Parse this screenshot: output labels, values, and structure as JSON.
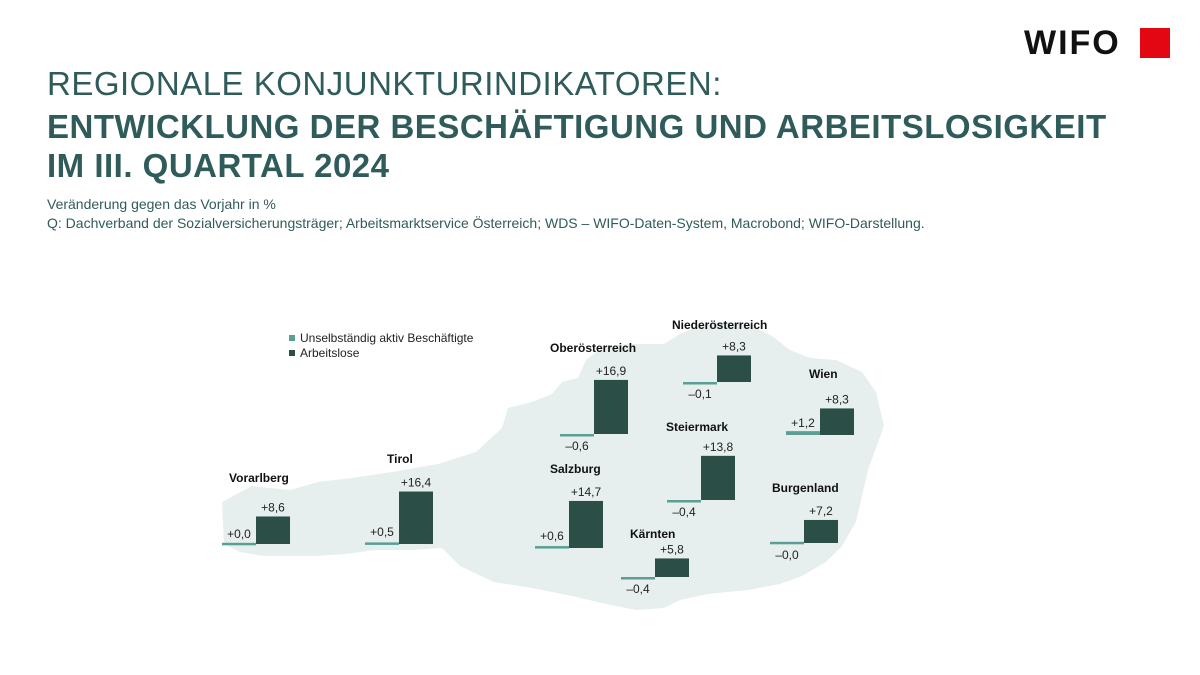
{
  "logo": {
    "text": "WIFO",
    "color": "#e30613"
  },
  "title": {
    "line1": "REGIONALE KONJUNKTURINDIKATOREN:",
    "line2": "ENTWICKLUNG DER BESCHÄFTIGUNG UND ARBEITSLOSIGKEIT",
    "line3": "IM III. QUARTAL 2024"
  },
  "subtitle": "Veränderung gegen das Vorjahr in %",
  "source": "Q: Dachverband der Sozialversicherungsträger; Arbeitsmarktservice Österreich; WDS – WIFO-Daten-System, Macrobond; WIFO-Darstellung.",
  "colors": {
    "employment": "#5a9e94",
    "unemployment": "#2b4f47",
    "map": "#e6efed",
    "text": "#2f5c5a"
  },
  "chart_data": {
    "type": "bar",
    "unit": "%",
    "series": [
      {
        "name": "Unselbständig aktiv Beschäftigte"
      },
      {
        "name": "Arbeitslose"
      }
    ],
    "regions": [
      {
        "name": "Vorarlberg",
        "employment": 0.0,
        "employment_label": "+0,0",
        "unemployment": 8.6,
        "unemployment_label": "+8,6"
      },
      {
        "name": "Tirol",
        "employment": 0.5,
        "employment_label": "+0,5",
        "unemployment": 16.4,
        "unemployment_label": "+16,4"
      },
      {
        "name": "Salzburg",
        "employment": 0.6,
        "employment_label": "+0,6",
        "unemployment": 14.7,
        "unemployment_label": "+14,7"
      },
      {
        "name": "Oberösterreich",
        "employment": -0.6,
        "employment_label": "–0,6",
        "unemployment": 16.9,
        "unemployment_label": "+16,9"
      },
      {
        "name": "Niederösterreich",
        "employment": -0.1,
        "employment_label": "–0,1",
        "unemployment": 8.3,
        "unemployment_label": "+8,3"
      },
      {
        "name": "Wien",
        "employment": 1.2,
        "employment_label": "+1,2",
        "unemployment": 8.3,
        "unemployment_label": "+8,3"
      },
      {
        "name": "Steiermark",
        "employment": -0.4,
        "employment_label": "–0,4",
        "unemployment": 13.8,
        "unemployment_label": "+13,8"
      },
      {
        "name": "Kärnten",
        "employment": -0.4,
        "employment_label": "–0,4",
        "unemployment": 5.8,
        "unemployment_label": "+5,8"
      },
      {
        "name": "Burgenland",
        "employment": -0.0,
        "employment_label": "–0,0",
        "unemployment": 7.2,
        "unemployment_label": "+7,2"
      }
    ]
  }
}
